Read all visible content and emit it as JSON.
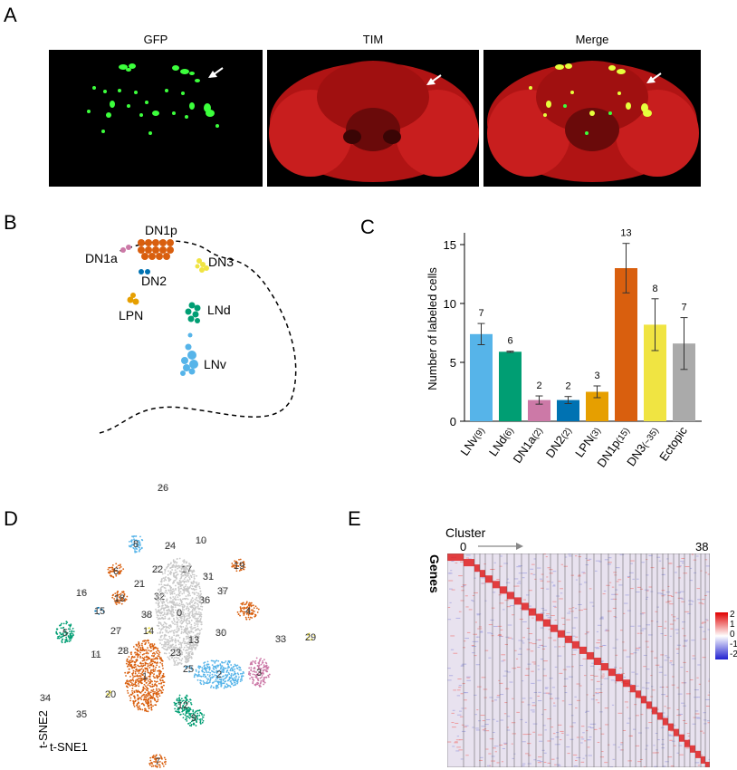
{
  "panelA": {
    "letter": "A",
    "images": [
      {
        "title": "GFP"
      },
      {
        "title": "TIM"
      },
      {
        "title": "Merge"
      }
    ]
  },
  "panelB": {
    "letter": "B",
    "labels": [
      "DN1p",
      "DN1a",
      "DN3",
      "DN2",
      "LPN",
      "LNd",
      "LNv"
    ],
    "colors": {
      "DN1p": "#d95f0e",
      "DN1a": "#cc79a7",
      "DN3": "#f0e442",
      "DN2": "#0072b2",
      "LPN": "#e69f00",
      "LNd": "#009e73",
      "LNv": "#56b4e9"
    }
  },
  "panelC": {
    "letter": "C"
  },
  "chart_data": {
    "type": "bar",
    "ylabel": "Number of labeled cells",
    "ylim": [
      0,
      16
    ],
    "yticks": [
      "0",
      "5",
      "10",
      "15"
    ],
    "categories": [
      "LNv(9)",
      "LNd(6)",
      "DN1a(2)",
      "DN2(2)",
      "LPN(3)",
      "DN1p(15)",
      "DN3(~35)",
      "Ectopic"
    ],
    "tick_names": [
      "LNv",
      "LNd",
      "DN1a",
      "DN2",
      "LPN",
      "DN1p",
      "DN3",
      "Ectopic"
    ],
    "tick_counts": [
      "(9)",
      "(6)",
      "(2)",
      "(2)",
      "(3)",
      "(15)",
      "(~35)",
      ""
    ],
    "values": [
      7.4,
      5.9,
      1.8,
      1.8,
      2.5,
      13.0,
      8.2,
      6.6
    ],
    "errors": [
      0.9,
      0.05,
      0.35,
      0.3,
      0.5,
      2.1,
      2.2,
      2.2
    ],
    "labels": [
      "7",
      "6",
      "2",
      "2",
      "3",
      "13",
      "8",
      "7"
    ],
    "colors": [
      "#56b4e9",
      "#009e73",
      "#cc79a7",
      "#0072b2",
      "#e69f00",
      "#d95f0e",
      "#f0e442",
      "#aaaaaa"
    ]
  },
  "panelD": {
    "letter": "D",
    "xlabel": "t-SNE1",
    "ylabel": "t-SNE2",
    "clusters": [
      {
        "id": "26",
        "c": "#c8c8c8"
      },
      {
        "id": "8",
        "c": "#56b4e9"
      },
      {
        "id": "24",
        "c": "#c8c8c8"
      },
      {
        "id": "10",
        "c": "#c8c8c8"
      },
      {
        "id": "19",
        "c": "#d95f0e"
      },
      {
        "id": "22",
        "c": "#c8c8c8"
      },
      {
        "id": "17",
        "c": "#c8c8c8"
      },
      {
        "id": "31",
        "c": "#c8c8c8"
      },
      {
        "id": "6",
        "c": "#d95f0e"
      },
      {
        "id": "21",
        "c": "#c8c8c8"
      },
      {
        "id": "16",
        "c": "#c8c8c8"
      },
      {
        "id": "32",
        "c": "#c8c8c8"
      },
      {
        "id": "36",
        "c": "#c8c8c8"
      },
      {
        "id": "37",
        "c": "#c8c8c8"
      },
      {
        "id": "18",
        "c": "#d95f0e"
      },
      {
        "id": "4",
        "c": "#d95f0e"
      },
      {
        "id": "15",
        "c": "#0072b2"
      },
      {
        "id": "38",
        "c": "#c8c8c8"
      },
      {
        "id": "0",
        "c": "#c8c8c8"
      },
      {
        "id": "27",
        "c": "#c8c8c8"
      },
      {
        "id": "14",
        "c": "#f0e442"
      },
      {
        "id": "5",
        "c": "#009e73"
      },
      {
        "id": "30",
        "c": "#c8c8c8"
      },
      {
        "id": "13",
        "c": "#c8c8c8"
      },
      {
        "id": "33",
        "c": "#c8c8c8"
      },
      {
        "id": "29",
        "c": "#f0e442"
      },
      {
        "id": "28",
        "c": "#c8c8c8"
      },
      {
        "id": "11",
        "c": "#c8c8c8"
      },
      {
        "id": "23",
        "c": "#c8c8c8"
      },
      {
        "id": "1",
        "c": "#d95f0e"
      },
      {
        "id": "25",
        "c": "#56b4e9"
      },
      {
        "id": "2",
        "c": "#56b4e9"
      },
      {
        "id": "3",
        "c": "#cc79a7"
      },
      {
        "id": "34",
        "c": "#c8c8c8"
      },
      {
        "id": "20",
        "c": "#f0e442"
      },
      {
        "id": "35",
        "c": "#c8c8c8"
      },
      {
        "id": "12",
        "c": "#009e73"
      },
      {
        "id": "9",
        "c": "#009e73"
      },
      {
        "id": "7",
        "c": "#d95f0e"
      }
    ]
  },
  "panelE": {
    "letter": "E",
    "cluster_label": "Cluster",
    "start": "0",
    "end": "38",
    "genes_label": "Genes",
    "legend": [
      "2",
      "1",
      "0",
      "-1",
      "-2"
    ]
  }
}
